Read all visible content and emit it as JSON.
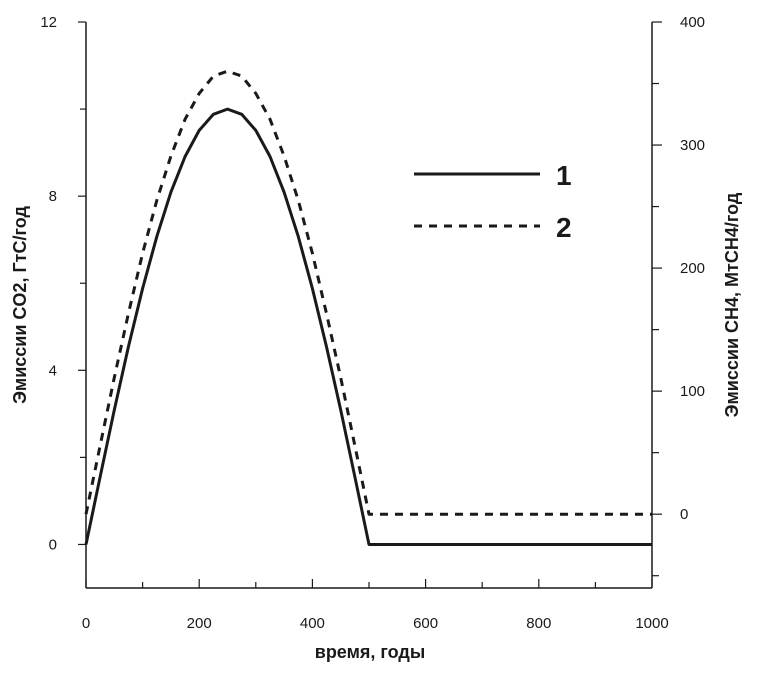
{
  "chart_data": {
    "type": "line",
    "title": "",
    "xlabel": "время, годы",
    "ylabel_left": "Эмиссии CO2, ГтС/год",
    "ylabel_right": "Эмиссии CH4, МтСН4/год",
    "xlim": [
      0,
      1000
    ],
    "ylim_left": [
      -1,
      12
    ],
    "ylim_right": [
      -60,
      400
    ],
    "x_ticks": [
      "0",
      "200",
      "400",
      "600",
      "800",
      "1000"
    ],
    "y_left_ticks": [
      "0",
      "4",
      "8",
      "12"
    ],
    "y_right_ticks": [
      "0",
      "100",
      "200",
      "300",
      "400"
    ],
    "grid": false,
    "legend_position": "top-right",
    "series": [
      {
        "name": "1",
        "axis": "left",
        "style": "solid",
        "x": [
          0,
          25,
          50,
          75,
          100,
          125,
          150,
          175,
          200,
          225,
          250,
          275,
          300,
          325,
          350,
          375,
          400,
          425,
          450,
          475,
          500,
          1000
        ],
        "y": [
          0,
          1.56,
          3.09,
          4.54,
          5.88,
          7.07,
          8.09,
          8.91,
          9.51,
          9.88,
          10,
          9.88,
          9.51,
          8.91,
          8.09,
          7.07,
          5.88,
          4.54,
          3.09,
          1.56,
          0,
          0
        ]
      },
      {
        "name": "2",
        "axis": "right",
        "style": "dashed",
        "x": [
          0,
          25,
          50,
          75,
          100,
          125,
          150,
          175,
          200,
          225,
          250,
          275,
          300,
          325,
          350,
          375,
          400,
          425,
          450,
          475,
          500,
          1000
        ],
        "y": [
          0,
          56,
          111,
          163,
          212,
          255,
          291,
          321,
          342,
          356,
          360,
          356,
          342,
          321,
          291,
          255,
          212,
          163,
          111,
          56,
          0,
          0
        ]
      }
    ]
  },
  "colors": {
    "line": "#1a1a1a",
    "background": "#ffffff"
  }
}
